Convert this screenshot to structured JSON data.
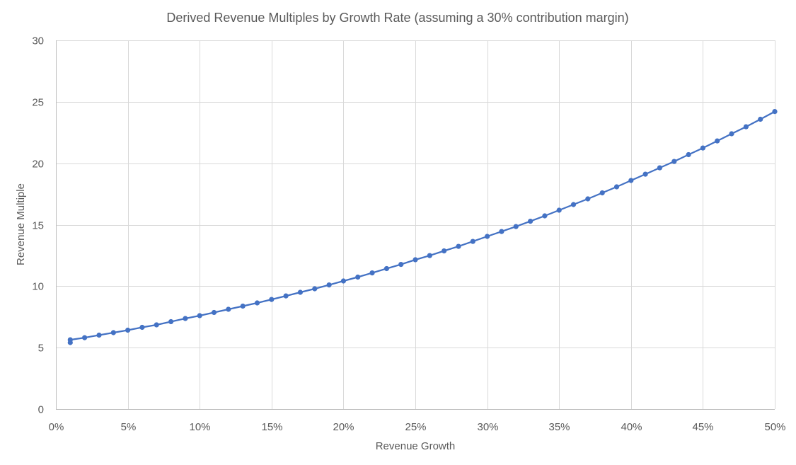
{
  "chart_data": {
    "type": "line",
    "title": "Derived Revenue Multiples by Growth Rate (assuming a 30% contribution margin)",
    "xlabel": "Revenue Growth",
    "ylabel": "Revenue Multiple",
    "xlim": [
      0,
      0.5
    ],
    "ylim": [
      0,
      30
    ],
    "x_ticks": [
      0,
      0.05,
      0.1,
      0.15,
      0.2,
      0.25,
      0.3,
      0.35,
      0.4,
      0.45,
      0.5
    ],
    "x_tick_labels": [
      "0%",
      "5%",
      "10%",
      "15%",
      "20%",
      "25%",
      "30%",
      "35%",
      "40%",
      "45%",
      "50%"
    ],
    "y_ticks": [
      0,
      5,
      10,
      15,
      20,
      25,
      30
    ],
    "y_tick_labels": [
      "0",
      "5",
      "10",
      "15",
      "20",
      "25",
      "30"
    ],
    "grid": true,
    "legend": "none",
    "marker": "circle",
    "color": "#4472c4",
    "series": [
      {
        "name": "Revenue Multiple",
        "x": [
          0.01,
          0.01,
          0.02,
          0.03,
          0.04,
          0.05,
          0.06,
          0.07,
          0.08,
          0.09,
          0.1,
          0.11,
          0.12,
          0.13,
          0.14,
          0.15,
          0.16,
          0.17,
          0.18,
          0.19,
          0.2,
          0.21,
          0.22,
          0.23,
          0.24,
          0.25,
          0.26,
          0.27,
          0.28,
          0.29,
          0.3,
          0.31,
          0.32,
          0.33,
          0.34,
          0.35,
          0.36,
          0.37,
          0.38,
          0.39,
          0.4,
          0.41,
          0.42,
          0.43,
          0.44,
          0.45,
          0.46,
          0.47,
          0.48,
          0.49,
          0.5
        ],
        "values": [
          5.41,
          5.64,
          5.81,
          6.02,
          6.22,
          6.42,
          6.65,
          6.85,
          7.11,
          7.37,
          7.6,
          7.86,
          8.12,
          8.38,
          8.64,
          8.92,
          9.21,
          9.5,
          9.79,
          10.1,
          10.42,
          10.74,
          11.08,
          11.43,
          11.77,
          12.15,
          12.49,
          12.87,
          13.24,
          13.64,
          14.05,
          14.45,
          14.85,
          15.28,
          15.72,
          16.18,
          16.64,
          17.1,
          17.59,
          18.08,
          18.6,
          19.11,
          19.63,
          20.15,
          20.7,
          21.24,
          21.82,
          22.4,
          22.97,
          23.58,
          24.21
        ]
      }
    ]
  }
}
